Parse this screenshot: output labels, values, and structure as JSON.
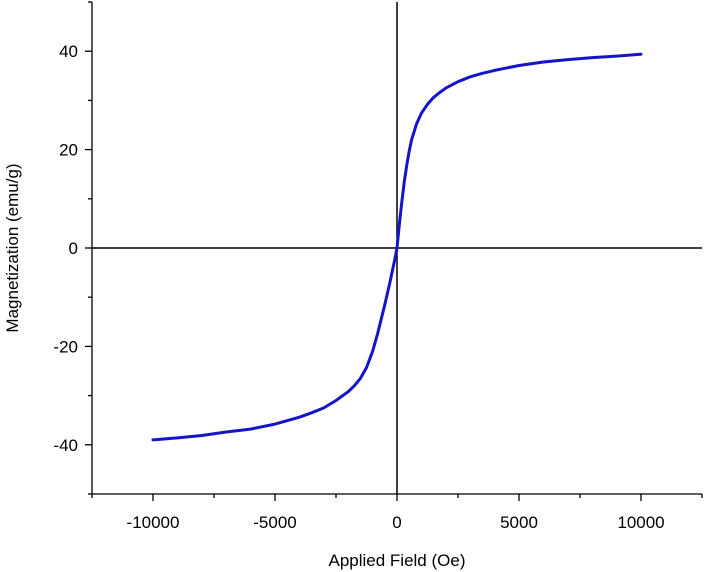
{
  "chart_data": {
    "type": "line",
    "title": "",
    "xlabel": "Applied Field (Oe)",
    "ylabel": "Magnetization (emu/g)",
    "xlim": [
      -12500,
      12500
    ],
    "ylim": [
      -50,
      50
    ],
    "xticks": [
      -10000,
      -5000,
      0,
      5000,
      10000
    ],
    "yticks": [
      -40,
      -20,
      0,
      20,
      40
    ],
    "xtick_labels": [
      "-10000",
      "-5000",
      "0",
      "5000",
      "10000"
    ],
    "ytick_labels": [
      "-40",
      "-20",
      "0",
      "20",
      "40"
    ],
    "zero_lines": true,
    "grid": false,
    "legend": "none",
    "series": [
      {
        "color": "#1414c8",
        "x": [
          -10000,
          -9000,
          -8000,
          -7000,
          -6000,
          -5000,
          -4000,
          -3500,
          -3000,
          -2500,
          -2000,
          -1750,
          -1500,
          -1250,
          -1000,
          -800,
          -600,
          -500,
          -400,
          -300,
          -200,
          -100,
          0,
          100,
          200,
          300,
          400,
          500,
          600,
          800,
          1000,
          1250,
          1500,
          1750,
          2000,
          2500,
          3000,
          3500,
          4000,
          5000,
          6000,
          7000,
          8000,
          9000,
          10000
        ],
        "y": [
          -39.0,
          -38.6,
          -38.1,
          -37.4,
          -36.8,
          -35.8,
          -34.4,
          -33.5,
          -32.5,
          -31.0,
          -29.2,
          -28.0,
          -26.5,
          -24.3,
          -21.0,
          -17.5,
          -13.5,
          -11.5,
          -9.4,
          -7.2,
          -4.9,
          -2.5,
          0,
          4.9,
          9.5,
          13.5,
          16.9,
          19.7,
          22.0,
          25.2,
          27.4,
          29.2,
          30.6,
          31.6,
          32.5,
          33.8,
          34.8,
          35.5,
          36.1,
          37.1,
          37.8,
          38.3,
          38.7,
          39.0,
          39.4
        ]
      }
    ]
  }
}
